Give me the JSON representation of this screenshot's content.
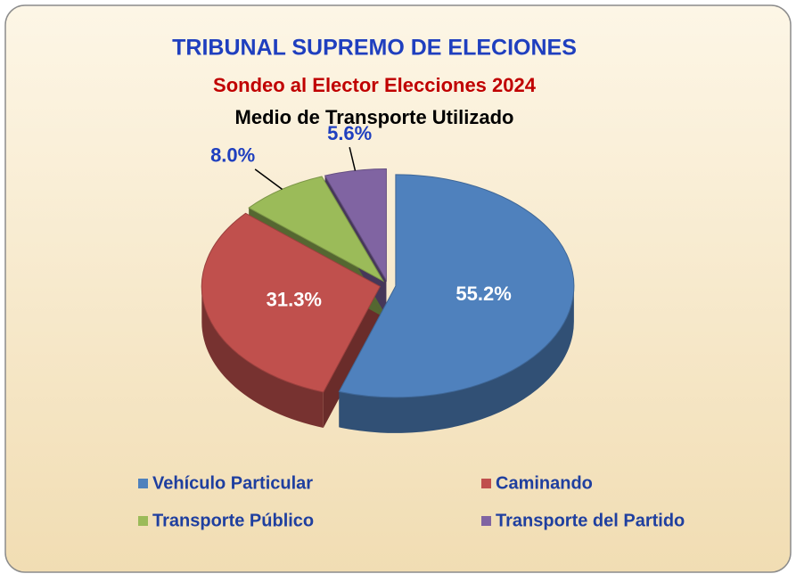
{
  "chart_data": {
    "type": "pie",
    "title": "TRIBUNAL SUPREMO DE ELECIONES",
    "subtitle": "Sondeo al Elector Elecciones 2024",
    "sub_subtitle": "Medio de Transporte Utilizado",
    "categories": [
      "Vehículo Particular",
      "Caminando",
      "Transporte Público",
      "Transporte del Partido"
    ],
    "values": [
      55.2,
      31.3,
      8.0,
      5.6
    ],
    "value_labels": [
      "55.2%",
      "31.3%",
      "8.0%",
      "5.6%"
    ],
    "colors": [
      "#4f81bd",
      "#c0504d",
      "#9bbb59",
      "#8064a2"
    ],
    "legend": "bottom"
  }
}
